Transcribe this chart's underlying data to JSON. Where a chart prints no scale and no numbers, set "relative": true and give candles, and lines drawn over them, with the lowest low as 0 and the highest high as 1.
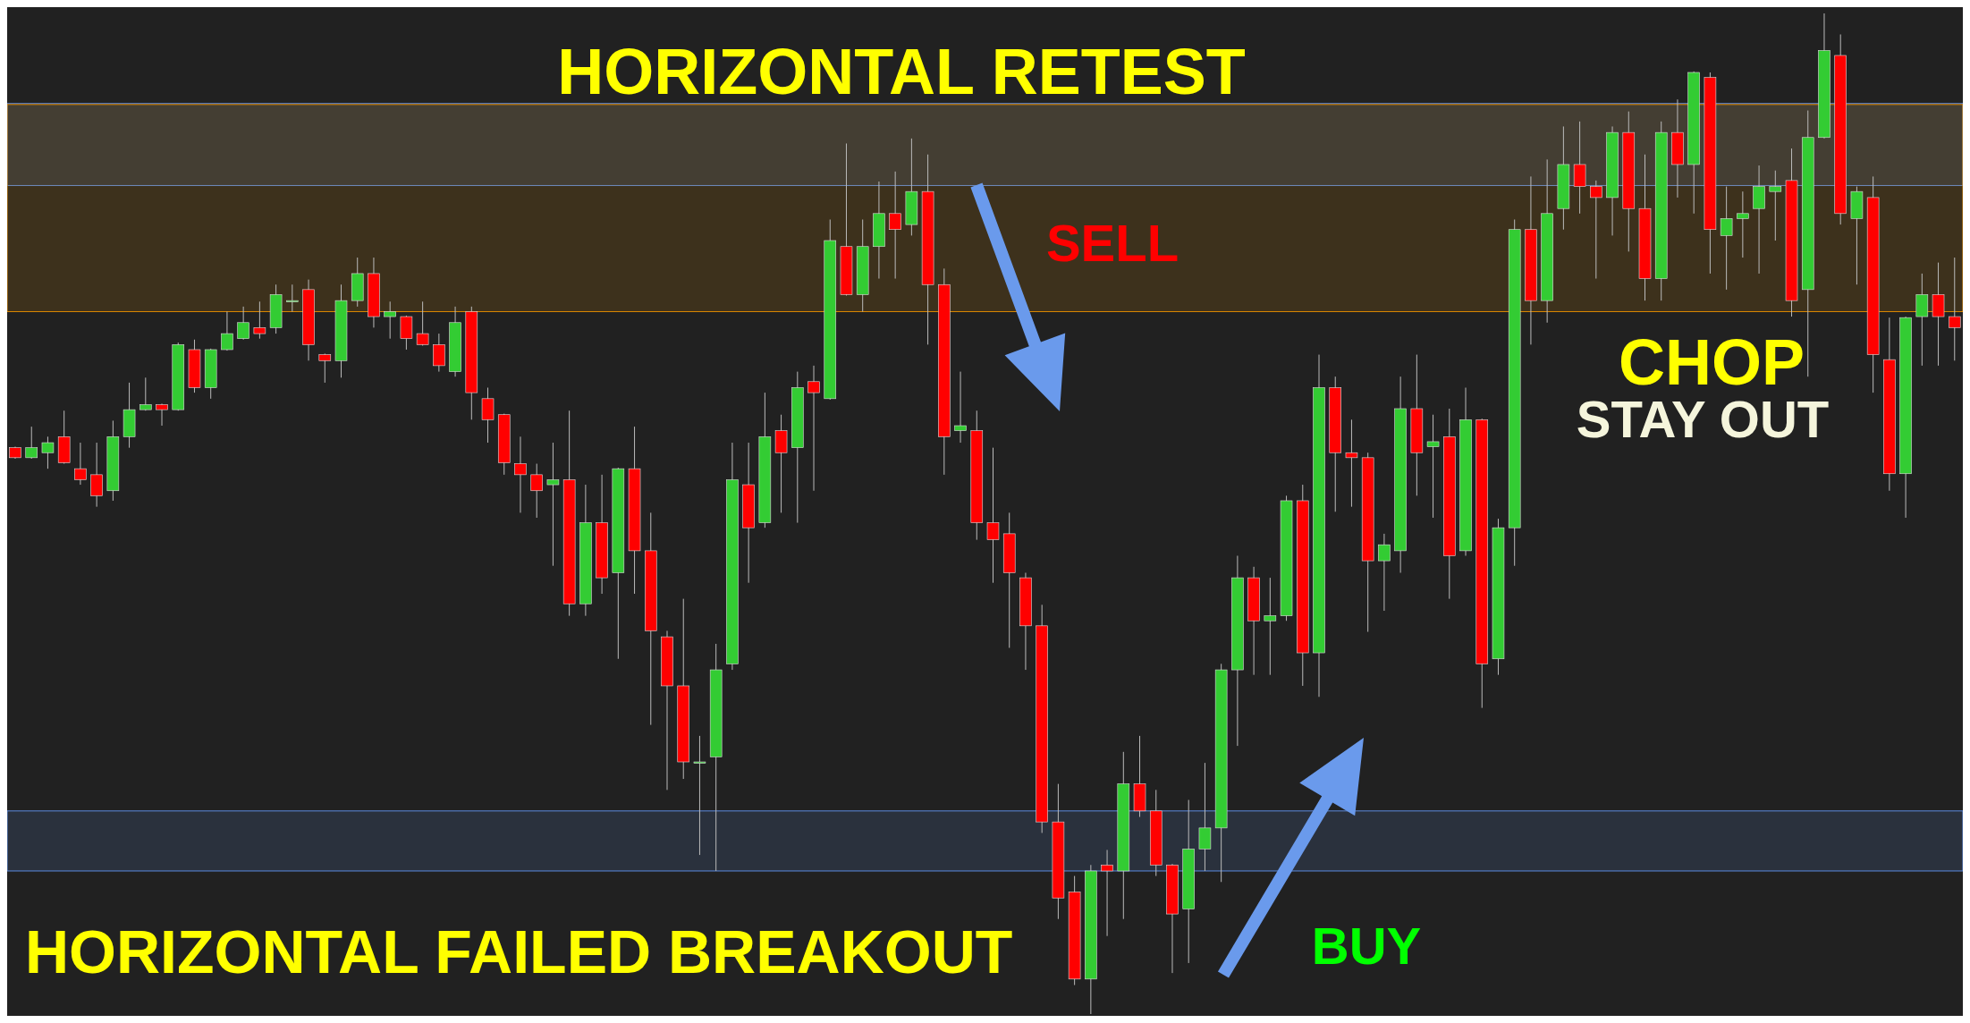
{
  "chart_data": {
    "type": "candlestick",
    "relative": true,
    "categories": [
      null,
      null,
      null,
      null,
      null,
      null,
      null,
      null,
      null,
      null,
      null,
      null,
      null,
      null,
      null,
      null,
      null,
      null,
      null,
      null,
      null,
      null,
      null,
      null,
      null,
      null,
      null,
      null,
      null,
      null,
      null,
      null,
      null,
      null,
      null,
      null,
      null,
      null,
      null,
      null,
      null,
      null,
      null,
      null,
      null,
      null,
      null,
      null,
      null,
      null,
      null,
      null,
      null,
      null,
      null,
      null,
      null,
      null,
      null,
      null,
      null,
      null,
      null,
      null,
      null,
      null,
      null,
      null,
      null,
      null,
      null,
      null,
      null,
      null,
      null,
      null,
      null,
      null,
      null,
      null,
      null,
      null,
      null,
      null,
      null,
      null,
      null,
      null,
      null,
      null,
      null,
      null,
      null,
      null,
      null,
      null,
      null,
      null,
      null,
      null,
      null,
      null,
      null,
      null,
      null,
      null,
      null,
      null,
      null,
      null,
      null,
      null,
      null,
      null,
      null,
      null,
      null,
      null,
      null,
      null
    ],
    "ohlc": [
      [
        0.566,
        0.567,
        0.555,
        0.556
      ],
      [
        0.556,
        0.587,
        0.555,
        0.566
      ],
      [
        0.561,
        0.577,
        0.545,
        0.571
      ],
      [
        0.577,
        0.603,
        0.55,
        0.551
      ],
      [
        0.545,
        0.571,
        0.529,
        0.534
      ],
      [
        0.539,
        0.571,
        0.507,
        0.518
      ],
      [
        0.523,
        0.593,
        0.513,
        0.577
      ],
      [
        0.577,
        0.631,
        0.566,
        0.604
      ],
      [
        0.604,
        0.636,
        0.603,
        0.609
      ],
      [
        0.609,
        0.61,
        0.588,
        0.604
      ],
      [
        0.604,
        0.671,
        0.603,
        0.669
      ],
      [
        0.664,
        0.674,
        0.621,
        0.626
      ],
      [
        0.626,
        0.665,
        0.615,
        0.664
      ],
      [
        0.664,
        0.702,
        0.663,
        0.68
      ],
      [
        0.675,
        0.707,
        0.674,
        0.691
      ],
      [
        0.686,
        0.712,
        0.675,
        0.68
      ],
      [
        0.686,
        0.729,
        0.68,
        0.719
      ],
      [
        0.713,
        0.729,
        0.702,
        0.713
      ],
      [
        0.724,
        0.734,
        0.653,
        0.669
      ],
      [
        0.659,
        0.66,
        0.631,
        0.653
      ],
      [
        0.653,
        0.729,
        0.636,
        0.713
      ],
      [
        0.713,
        0.756,
        0.707,
        0.74
      ],
      [
        0.74,
        0.756,
        0.686,
        0.697
      ],
      [
        0.697,
        0.712,
        0.675,
        0.702
      ],
      [
        0.697,
        0.698,
        0.664,
        0.675
      ],
      [
        0.68,
        0.712,
        0.668,
        0.669
      ],
      [
        0.669,
        0.68,
        0.642,
        0.648
      ],
      [
        0.642,
        0.707,
        0.637,
        0.691
      ],
      [
        0.702,
        0.707,
        0.594,
        0.621
      ],
      [
        0.615,
        0.626,
        0.571,
        0.594
      ],
      [
        0.599,
        0.6,
        0.539,
        0.551
      ],
      [
        0.55,
        0.577,
        0.501,
        0.539
      ],
      [
        0.539,
        0.55,
        0.496,
        0.523
      ],
      [
        0.529,
        0.571,
        0.448,
        0.534
      ],
      [
        0.534,
        0.603,
        0.398,
        0.41
      ],
      [
        0.41,
        0.529,
        0.398,
        0.491
      ],
      [
        0.491,
        0.539,
        0.42,
        0.436
      ],
      [
        0.441,
        0.546,
        0.355,
        0.545
      ],
      [
        0.545,
        0.587,
        0.42,
        0.463
      ],
      [
        0.463,
        0.501,
        0.289,
        0.383
      ],
      [
        0.377,
        0.383,
        0.224,
        0.328
      ],
      [
        0.328,
        0.415,
        0.235,
        0.252
      ],
      [
        0.252,
        0.278,
        0.159,
        0.252
      ],
      [
        0.257,
        0.37,
        0.143,
        0.344
      ],
      [
        0.35,
        0.571,
        0.344,
        0.534
      ],
      [
        0.529,
        0.571,
        0.431,
        0.486
      ],
      [
        0.491,
        0.621,
        0.486,
        0.577
      ],
      [
        0.583,
        0.599,
        0.501,
        0.561
      ],
      [
        0.566,
        0.642,
        0.491,
        0.626
      ],
      [
        0.632,
        0.648,
        0.523,
        0.621
      ],
      [
        0.615,
        0.794,
        0.614,
        0.773
      ],
      [
        0.767,
        0.87,
        0.718,
        0.719
      ],
      [
        0.719,
        0.794,
        0.702,
        0.767
      ],
      [
        0.767,
        0.832,
        0.735,
        0.8
      ],
      [
        0.8,
        0.842,
        0.735,
        0.784
      ],
      [
        0.789,
        0.875,
        0.778,
        0.822
      ],
      [
        0.822,
        0.859,
        0.669,
        0.729
      ],
      [
        0.729,
        0.745,
        0.539,
        0.577
      ],
      [
        0.583,
        0.642,
        0.571,
        0.588
      ],
      [
        0.583,
        0.603,
        0.474,
        0.491
      ],
      [
        0.491,
        0.566,
        0.431,
        0.474
      ],
      [
        0.48,
        0.501,
        0.366,
        0.441
      ],
      [
        0.436,
        0.441,
        0.344,
        0.388
      ],
      [
        0.388,
        0.409,
        0.181,
        0.192
      ],
      [
        0.192,
        0.23,
        0.095,
        0.116
      ],
      [
        0.122,
        0.138,
        0.029,
        0.035
      ],
      [
        0.035,
        0.149,
        0,
        0.143
      ],
      [
        0.149,
        0.164,
        0.078,
        0.143
      ],
      [
        0.143,
        0.262,
        0.095,
        0.23
      ],
      [
        0.23,
        0.278,
        0.197,
        0.203
      ],
      [
        0.203,
        0.224,
        0.138,
        0.149
      ],
      [
        0.149,
        0.15,
        0.041,
        0.1
      ],
      [
        0.105,
        0.214,
        0.051,
        0.165
      ],
      [
        0.165,
        0.251,
        0.143,
        0.186
      ],
      [
        0.186,
        0.35,
        0.132,
        0.344
      ],
      [
        0.344,
        0.458,
        0.268,
        0.436
      ],
      [
        0.436,
        0.447,
        0.339,
        0.393
      ],
      [
        0.393,
        0.436,
        0.339,
        0.398
      ],
      [
        0.398,
        0.518,
        0.393,
        0.513
      ],
      [
        0.513,
        0.529,
        0.328,
        0.361
      ],
      [
        0.361,
        0.659,
        0.317,
        0.626
      ],
      [
        0.626,
        0.637,
        0.502,
        0.561
      ],
      [
        0.561,
        0.594,
        0.507,
        0.556
      ],
      [
        0.556,
        0.561,
        0.382,
        0.453
      ],
      [
        0.453,
        0.48,
        0.403,
        0.469
      ],
      [
        0.463,
        0.637,
        0.441,
        0.605
      ],
      [
        0.605,
        0.659,
        0.518,
        0.561
      ],
      [
        0.567,
        0.599,
        0.496,
        0.572
      ],
      [
        0.577,
        0.605,
        0.415,
        0.458
      ],
      [
        0.463,
        0.626,
        0.458,
        0.594
      ],
      [
        0.594,
        0.595,
        0.306,
        0.35
      ],
      [
        0.355,
        0.495,
        0.339,
        0.486
      ],
      [
        0.486,
        0.794,
        0.448,
        0.784
      ],
      [
        0.784,
        0.837,
        0.669,
        0.713
      ],
      [
        0.713,
        0.854,
        0.691,
        0.8
      ],
      [
        0.805,
        0.887,
        0.784,
        0.849
      ],
      [
        0.849,
        0.892,
        0.8,
        0.827
      ],
      [
        0.827,
        0.833,
        0.735,
        0.816
      ],
      [
        0.816,
        0.887,
        0.778,
        0.881
      ],
      [
        0.881,
        0.902,
        0.762,
        0.805
      ],
      [
        0.805,
        0.859,
        0.713,
        0.735
      ],
      [
        0.735,
        0.892,
        0.713,
        0.881
      ],
      [
        0.881,
        0.914,
        0.816,
        0.849
      ],
      [
        0.849,
        0.942,
        0.8,
        0.941
      ],
      [
        0.936,
        0.941,
        0.74,
        0.784
      ],
      [
        0.778,
        0.827,
        0.724,
        0.795
      ],
      [
        0.795,
        0.822,
        0.756,
        0.8
      ],
      [
        0.805,
        0.848,
        0.74,
        0.827
      ],
      [
        0.822,
        0.843,
        0.773,
        0.827
      ],
      [
        0.833,
        0.865,
        0.697,
        0.713
      ],
      [
        0.724,
        0.903,
        0.637,
        0.876
      ],
      [
        0.876,
        1,
        0.875,
        0.963
      ],
      [
        0.958,
        0.979,
        0.789,
        0.8
      ],
      [
        0.795,
        0.827,
        0.729,
        0.822
      ],
      [
        0.816,
        0.837,
        0.621,
        0.659
      ],
      [
        0.654,
        0.696,
        0.523,
        0.54
      ],
      [
        0.54,
        0.697,
        0.496,
        0.696
      ],
      [
        0.697,
        0.74,
        0.648,
        0.719
      ],
      [
        0.719,
        0.751,
        0.648,
        0.697
      ],
      [
        0.697,
        0.756,
        0.653,
        0.686
      ]
    ],
    "bands": [
      {
        "axis": "y",
        "from": 0.828,
        "to": 0.91,
        "color": "#5b8be0"
      },
      {
        "axis": "y",
        "from": 0.143,
        "to": 0.203,
        "color": "#5b8be0"
      },
      {
        "axis": "y",
        "from": 0.702,
        "to": 0.909,
        "color": "#e08a00"
      }
    ],
    "annotations": [
      "HORIZONTAL RETEST",
      "SELL",
      "HORIZONTAL FAILED BREAKOUT",
      "BUY",
      "CHOP",
      "STAY OUT"
    ]
  }
}
